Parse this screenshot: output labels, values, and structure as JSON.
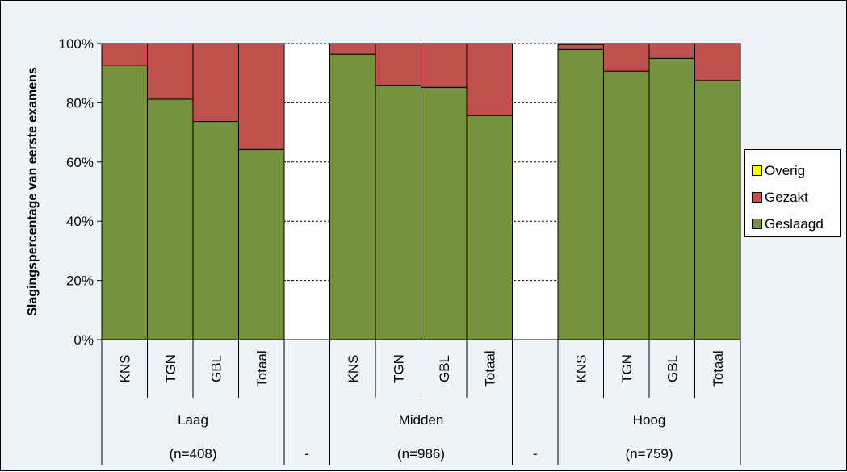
{
  "chart_data": {
    "type": "bar",
    "stacked": true,
    "ylabel": "Slagingspercentage van eerste examens",
    "ylim": [
      0,
      100
    ],
    "y_ticks": [
      "0%",
      "20%",
      "40%",
      "60%",
      "80%",
      "100%"
    ],
    "gridlines": "dashed at 20% intervals",
    "legend_position": "right",
    "groups": [
      {
        "label": "Laag",
        "n_label": "(n=408)",
        "categories": [
          "KNS",
          "TGN",
          "GBL",
          "Totaal"
        ]
      },
      {
        "label": "",
        "n_label": "-",
        "categories": [
          ""
        ]
      },
      {
        "label": "Midden",
        "n_label": "(n=986)",
        "categories": [
          "KNS",
          "TGN",
          "GBL",
          "Totaal"
        ]
      },
      {
        "label": "",
        "n_label": "-",
        "categories": [
          ""
        ]
      },
      {
        "label": "Hoog",
        "n_label": "(n=759)",
        "categories": [
          "KNS",
          "TGN",
          "GBL",
          "Totaal"
        ]
      }
    ],
    "series": [
      {
        "name": "Geslaagd",
        "color": "#76923c",
        "values": [
          92.7,
          81.2,
          73.7,
          64.2,
          null,
          96.4,
          85.9,
          85.2,
          75.7,
          null,
          98.0,
          90.7,
          95.0,
          87.5
        ]
      },
      {
        "name": "Gezakt",
        "color": "#c0504d",
        "values": [
          7.3,
          18.8,
          26.3,
          35.8,
          null,
          3.6,
          14.1,
          14.8,
          24.3,
          null,
          1.7,
          9.3,
          5.0,
          12.5
        ]
      },
      {
        "name": "Overig",
        "color": "#ffff00",
        "values": [
          0,
          0,
          0,
          0,
          null,
          0,
          0,
          0,
          0,
          null,
          0.3,
          0,
          0,
          0
        ]
      }
    ],
    "legend": [
      "Overig",
      "Gezakt",
      "Geslaagd"
    ]
  }
}
